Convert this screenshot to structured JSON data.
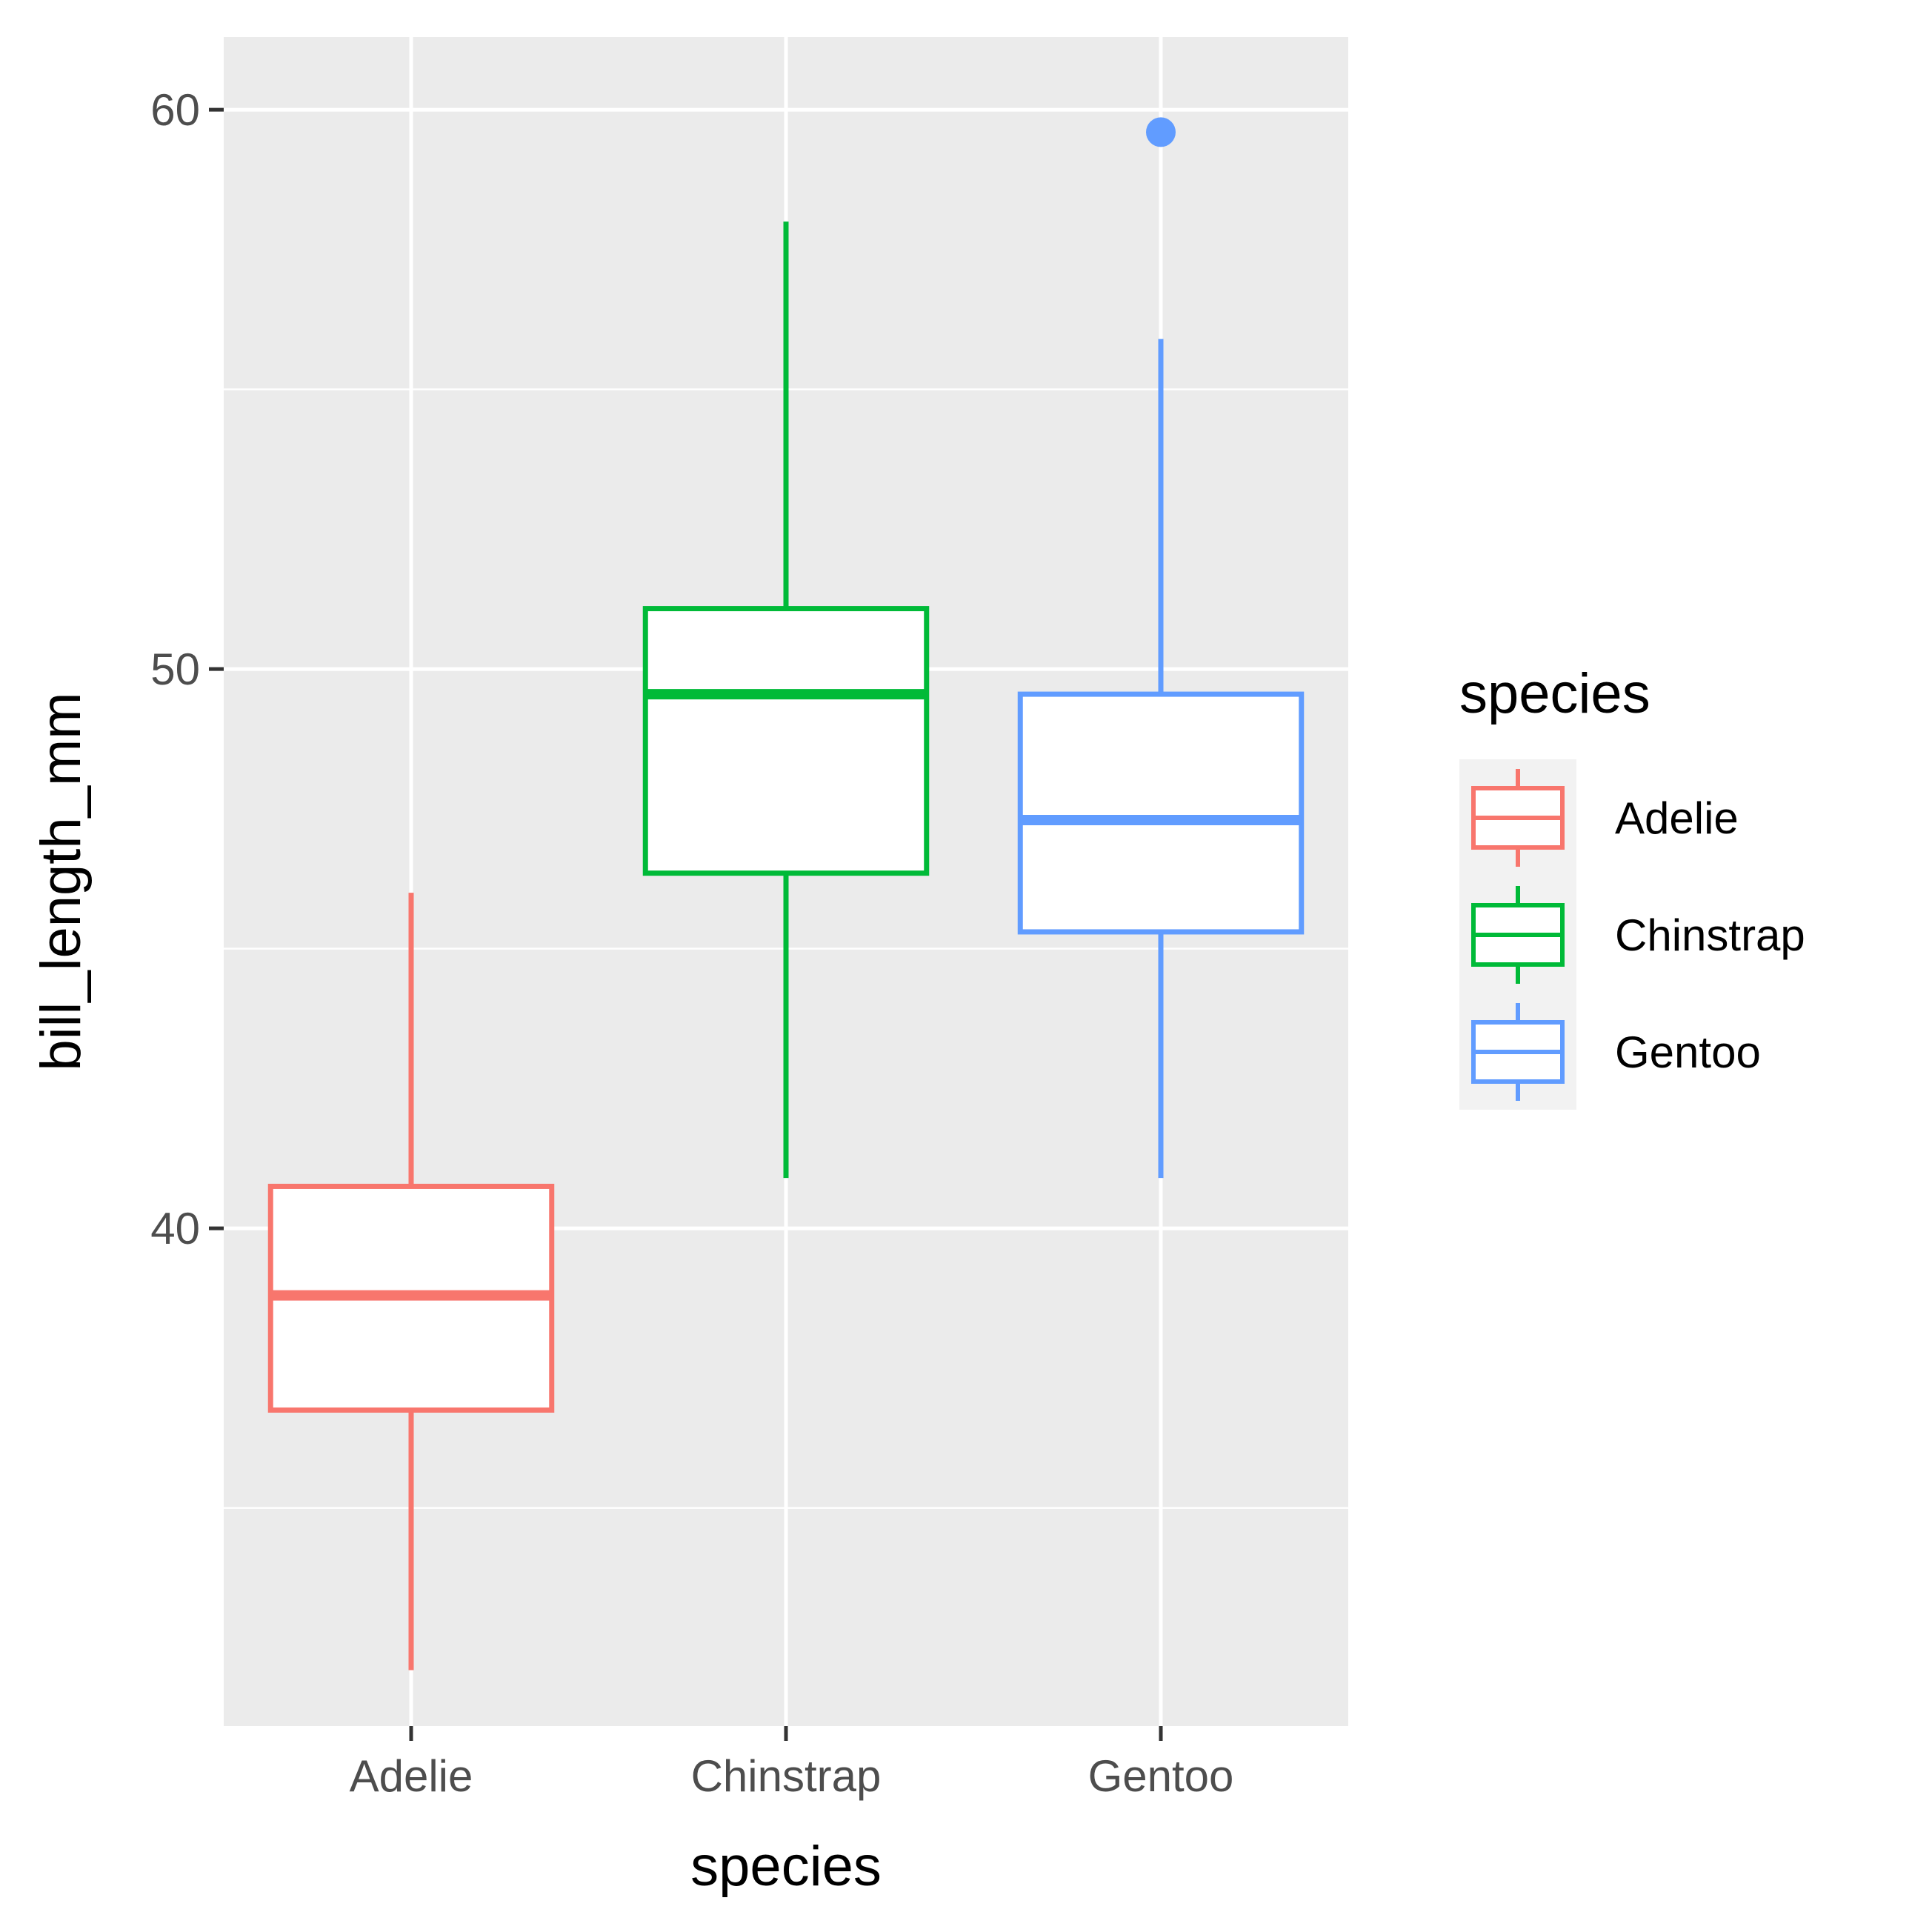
{
  "chart_data": {
    "type": "box",
    "xlabel": "species",
    "ylabel": "bill_length_mm",
    "categories": [
      "Adelie",
      "Chinstrap",
      "Gentoo"
    ],
    "ylim": [
      31.1,
      61.3
    ],
    "y_ticks": [
      40,
      50,
      60
    ],
    "grid": true,
    "legend": {
      "title": "species",
      "position": "right",
      "entries": [
        "Adelie",
        "Chinstrap",
        "Gentoo"
      ]
    },
    "series": [
      {
        "category": "Adelie",
        "color": "#F8766D",
        "min": 32.1,
        "q1": 36.75,
        "median": 38.8,
        "q3": 40.75,
        "max": 46.0,
        "outliers": []
      },
      {
        "category": "Chinstrap",
        "color": "#00BA38",
        "min": 40.9,
        "q1": 46.35,
        "median": 49.55,
        "q3": 51.08,
        "max": 58.0,
        "outliers": []
      },
      {
        "category": "Gentoo",
        "color": "#619CFF",
        "min": 40.9,
        "q1": 45.3,
        "median": 47.3,
        "q3": 49.55,
        "max": 55.9,
        "outliers": [
          59.6
        ]
      }
    ]
  }
}
